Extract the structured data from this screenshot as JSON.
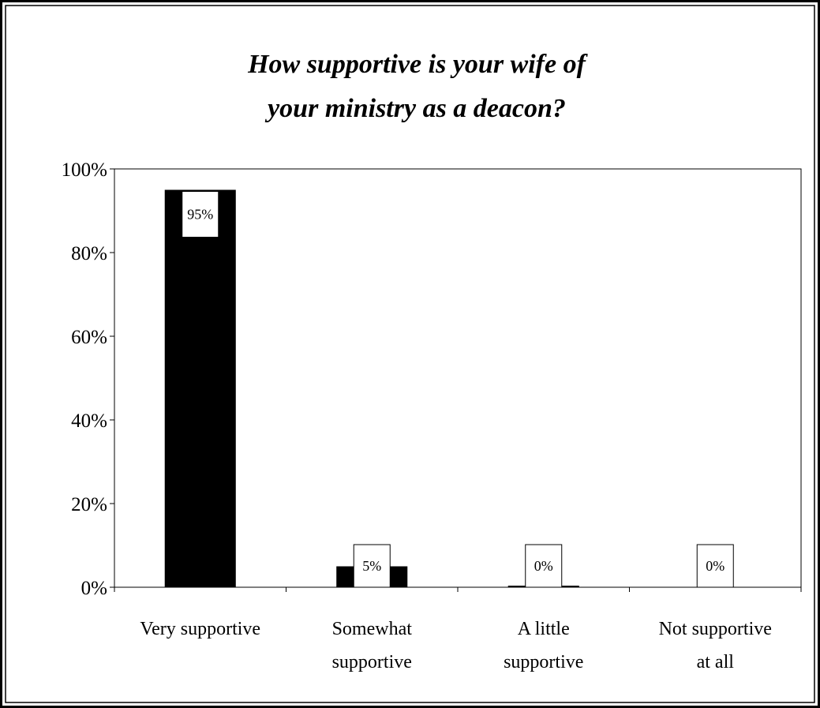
{
  "chart_data": {
    "type": "bar",
    "title_lines": [
      "How supportive is your wife of",
      "your ministry as a deacon?"
    ],
    "categories": [
      [
        "Very supportive"
      ],
      [
        "Somewhat",
        "supportive"
      ],
      [
        "A little",
        "supportive"
      ],
      [
        "Not supportive",
        "at all"
      ]
    ],
    "values": [
      95,
      5,
      0,
      0
    ],
    "data_labels": [
      "95%",
      "5%",
      "0%",
      "0%"
    ],
    "y_ticks": [
      "0%",
      "20%",
      "40%",
      "60%",
      "80%",
      "100%"
    ],
    "y_tick_values": [
      0,
      20,
      40,
      60,
      80,
      100
    ],
    "ylim": [
      0,
      100
    ],
    "bar_color": "#000000",
    "grid": false,
    "legend": "none"
  }
}
